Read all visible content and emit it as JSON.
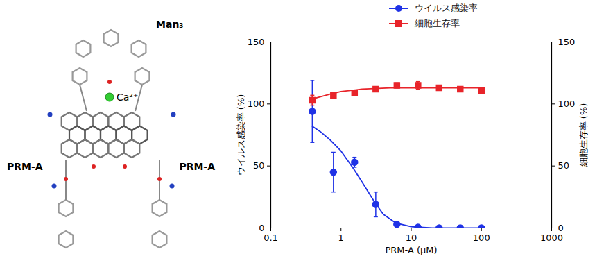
{
  "structure": {
    "labels": {
      "top": "Man₃",
      "ion": "Ca²⁺",
      "left": "PRM-A",
      "right": "PRM-A"
    }
  },
  "chart_data": {
    "type": "scatter",
    "x_label": "PRM-A (μM)",
    "y_label": "ウイルス感染率 (%)",
    "y2_label": "細胞生存率 (%)",
    "log": "x",
    "legend": "top",
    "xlim": [
      0.1,
      1000
    ],
    "xticks": [
      0.1,
      1,
      10,
      100,
      1000
    ],
    "ylim": [
      0,
      150
    ],
    "yticks": [
      0,
      50,
      100,
      150
    ],
    "y2lim": [
      0,
      150
    ],
    "y2ticks": [
      0,
      50,
      100,
      150
    ],
    "x": [
      0.39,
      0.78,
      1.56,
      3.125,
      6.25,
      12.5,
      25,
      50,
      100
    ],
    "series": [
      {
        "name": "ウイルス感染率",
        "color": "#1f32e6",
        "marker": "circle",
        "line_style": "solid",
        "values": [
          94,
          45,
          53,
          19,
          3,
          0.5,
          0,
          0,
          0
        ],
        "errors": [
          25,
          16,
          4,
          10,
          1,
          0.5,
          0,
          0,
          0
        ],
        "fit": {
          "x": [
            0.39,
            0.5,
            0.7,
            1,
            1.5,
            2,
            3,
            4,
            6,
            10,
            20,
            100
          ],
          "values": [
            82,
            78,
            71,
            62,
            48,
            37,
            21,
            11,
            4,
            1,
            0,
            0
          ]
        }
      },
      {
        "name": "細胞生存率",
        "color": "#e8242a",
        "marker": "square",
        "line_style": "solid",
        "axis": "y2",
        "values": [
          103,
          107,
          109,
          112,
          115,
          115,
          113,
          112,
          111
        ],
        "errors": [
          4,
          2,
          2,
          2,
          2,
          3,
          2,
          2,
          2
        ],
        "fit": {
          "x": [
            0.39,
            0.7,
            1,
            2,
            5,
            100
          ],
          "values": [
            104,
            108,
            110,
            112,
            113,
            113
          ]
        }
      }
    ]
  }
}
